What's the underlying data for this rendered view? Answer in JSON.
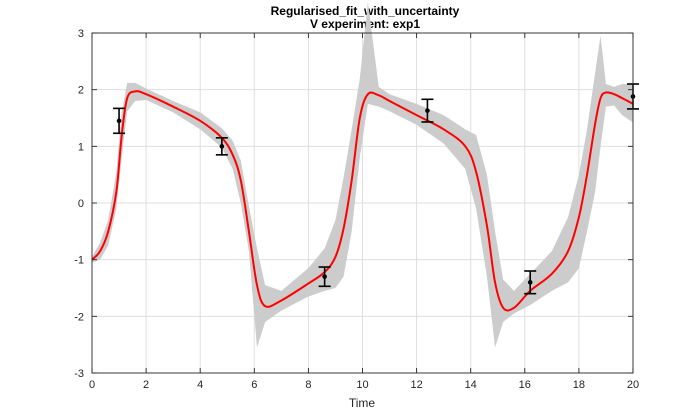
{
  "chart_data": {
    "type": "line",
    "title": "Regularised_fit_with_uncertainty",
    "subtitle": "V experiment: exp1",
    "xlabel": "Time",
    "ylabel": "",
    "xlim": [
      0,
      20
    ],
    "ylim": [
      -3,
      3
    ],
    "xticks": [
      0,
      2,
      4,
      6,
      8,
      10,
      12,
      14,
      16,
      18,
      20
    ],
    "yticks": [
      -3,
      -2,
      -1,
      0,
      1,
      2,
      3
    ],
    "grid": true,
    "colors": {
      "fit": "#ff0000",
      "band": "#cccccc",
      "data": "#000000"
    },
    "series": [
      {
        "kind": "fit-line",
        "x": [
          0,
          0.3,
          0.6,
          0.9,
          1.1,
          1.3,
          1.6,
          2,
          3,
          4,
          4.8,
          5.2,
          5.5,
          5.8,
          6.1,
          6.4,
          7,
          8,
          8.6,
          9,
          9.3,
          9.6,
          9.9,
          10.2,
          10.6,
          11,
          12,
          13,
          13.8,
          14.2,
          14.6,
          14.9,
          15.2,
          15.6,
          16.2,
          17,
          17.6,
          18,
          18.3,
          18.6,
          18.8,
          19,
          19.3,
          19.6,
          20
        ],
        "y": [
          -1.0,
          -0.85,
          -0.5,
          0.2,
          1.2,
          1.85,
          1.97,
          1.92,
          1.7,
          1.45,
          1.15,
          0.85,
          0.4,
          -0.5,
          -1.45,
          -1.82,
          -1.72,
          -1.42,
          -1.22,
          -0.95,
          -0.45,
          0.4,
          1.5,
          1.92,
          1.9,
          1.8,
          1.55,
          1.3,
          1.0,
          0.55,
          -0.4,
          -1.4,
          -1.85,
          -1.85,
          -1.55,
          -1.25,
          -0.85,
          -0.25,
          0.5,
          1.4,
          1.85,
          1.95,
          1.92,
          1.85,
          1.75
        ]
      },
      {
        "kind": "uncertainty-band",
        "x": [
          0,
          0.3,
          0.6,
          0.9,
          1.1,
          1.3,
          1.6,
          2,
          3,
          4,
          4.8,
          5.2,
          5.5,
          5.8,
          6.1,
          6.4,
          7,
          8,
          8.6,
          9,
          9.3,
          9.6,
          9.9,
          10.2,
          10.6,
          11,
          12,
          13,
          13.8,
          14.2,
          14.6,
          14.9,
          15.2,
          15.6,
          16.2,
          17,
          17.6,
          18,
          18.3,
          18.6,
          18.8,
          19,
          19.3,
          19.6,
          20
        ],
        "upper": [
          -0.95,
          -0.7,
          -0.3,
          0.55,
          1.6,
          2.12,
          2.12,
          2.02,
          1.8,
          1.6,
          1.32,
          1.1,
          0.75,
          -0.05,
          -0.8,
          -1.45,
          -1.55,
          -1.15,
          -0.8,
          -0.3,
          0.45,
          1.3,
          2.2,
          3.55,
          2.05,
          1.92,
          1.75,
          1.55,
          1.3,
          1.2,
          0.5,
          -0.5,
          -1.35,
          -1.55,
          -1.25,
          -0.85,
          -0.25,
          0.5,
          1.3,
          2.3,
          2.95,
          2.1,
          2.05,
          2.1,
          2.1
        ],
        "lower": [
          -1.05,
          -1.0,
          -0.75,
          -0.1,
          0.8,
          1.62,
          1.8,
          1.82,
          1.6,
          1.3,
          0.98,
          0.6,
          0.0,
          -0.85,
          -2.55,
          -2.1,
          -1.9,
          -1.65,
          -1.55,
          -1.5,
          -1.3,
          -0.5,
          0.8,
          1.75,
          1.7,
          1.62,
          1.38,
          1.05,
          0.6,
          -0.1,
          -1.3,
          -2.55,
          -2.1,
          -1.95,
          -1.8,
          -1.55,
          -1.4,
          -1.15,
          -0.5,
          0.2,
          1.0,
          1.7,
          1.72,
          1.55,
          1.42
        ]
      },
      {
        "kind": "data-points",
        "x": [
          1.0,
          4.8,
          8.6,
          12.4,
          16.2,
          20.0
        ],
        "y": [
          1.45,
          1.0,
          -1.3,
          1.63,
          -1.4,
          1.88
        ],
        "err": [
          0.22,
          0.15,
          0.17,
          0.2,
          0.2,
          0.22
        ]
      }
    ]
  }
}
